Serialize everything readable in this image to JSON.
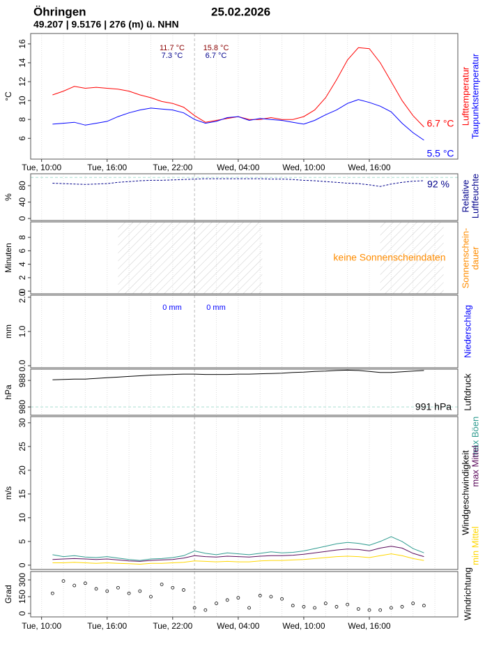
{
  "header": {
    "title": "Öhringen",
    "date": "25.02.2026",
    "subtitle": "49.207 | 9.5176 | 276 (m) ü. NHN"
  },
  "x": [
    11,
    12,
    13,
    14,
    15,
    16,
    17,
    18,
    19,
    20,
    21,
    22,
    23,
    24,
    25,
    26,
    27,
    28,
    29,
    30,
    31,
    32,
    33,
    34,
    35,
    36,
    37,
    38,
    39,
    40,
    41,
    42,
    43,
    44,
    45
  ],
  "xlim": [
    9,
    48.1
  ],
  "xticks": [
    {
      "value": 10,
      "label": "Tue, 10:00"
    },
    {
      "value": 16,
      "label": "Tue, 16:00"
    },
    {
      "value": 22,
      "label": "Tue, 22:00"
    },
    {
      "value": 28,
      "label": "Wed, 04:00"
    },
    {
      "value": 34,
      "label": "Wed, 10:00"
    },
    {
      "value": 40,
      "label": "Wed, 16:00"
    }
  ],
  "xgrid": [
    10,
    12,
    14,
    16,
    18,
    20,
    22,
    26,
    28,
    30,
    32,
    34,
    36,
    38,
    40,
    42,
    44,
    46
  ],
  "day_line": 24,
  "chart_data": [
    {
      "type": "line",
      "ylabel": "°C",
      "ylim": [
        3.8,
        17.1
      ],
      "yticks": [
        6,
        8,
        10,
        12,
        14,
        16
      ],
      "series": [
        {
          "name": "Lufttemperatur",
          "color": "#ff0000",
          "values": [
            10.6,
            11.0,
            11.5,
            11.3,
            11.4,
            11.3,
            11.2,
            11.0,
            10.6,
            10.3,
            9.9,
            9.7,
            9.3,
            8.4,
            7.7,
            7.9,
            8.1,
            8.3,
            8.0,
            8.0,
            8.2,
            8.0,
            8.0,
            8.3,
            9.0,
            10.3,
            12.2,
            14.3,
            15.6,
            15.5,
            14.0,
            12.0,
            10.0,
            8.4,
            7.2
          ]
        },
        {
          "name": "Taupunktstemperatur",
          "color": "#0000ff",
          "values": [
            7.5,
            7.6,
            7.7,
            7.4,
            7.6,
            7.8,
            8.3,
            8.7,
            9.0,
            9.2,
            9.1,
            9.0,
            8.7,
            8.0,
            7.6,
            7.8,
            8.2,
            8.3,
            7.9,
            8.1,
            8.0,
            7.9,
            7.7,
            7.5,
            7.9,
            8.5,
            9.0,
            9.7,
            10.1,
            9.8,
            9.4,
            8.8,
            7.6,
            6.6,
            5.8
          ]
        }
      ],
      "side_labels": [
        {
          "text": "Lufttemperatur",
          "color": "#ff0000"
        },
        {
          "text": "Taupunktstemperatur",
          "color": "#0000ff"
        }
      ],
      "annotations": [
        {
          "text": "11.7 °C",
          "color": "#8b0000"
        },
        {
          "text": "7.3 °C",
          "color": "#00008b"
        },
        {
          "text": "15.8 °C",
          "color": "#8b0000"
        },
        {
          "text": "6.7 °C",
          "color": "#00008b"
        },
        {
          "text": "6.7 °C",
          "color": "#ff0000"
        },
        {
          "text": "5.5 °C",
          "color": "#0000ff"
        }
      ]
    },
    {
      "type": "line",
      "ylabel": "%",
      "ylim": [
        -5,
        109
      ],
      "yticks": [
        0,
        40,
        80
      ],
      "ref_line": 100,
      "dashed": true,
      "series": [
        {
          "name": "Relative Luftfeuchte",
          "color": "#00008b",
          "values": [
            86,
            85,
            84,
            83,
            84,
            85,
            88,
            90,
            92,
            93,
            93,
            94,
            95,
            96,
            97,
            97,
            97,
            97,
            97,
            97,
            96,
            96,
            95,
            93,
            92,
            90,
            88,
            86,
            85,
            82,
            78,
            84,
            88,
            91,
            92
          ]
        }
      ],
      "side_labels": [
        {
          "text": "Relative",
          "color": "#00008b"
        },
        {
          "text": "Luftfeuchte",
          "color": "#00008b"
        }
      ],
      "annotations": [
        {
          "text": "92 %",
          "color": "#00008b"
        }
      ]
    },
    {
      "type": "bar",
      "ylabel": "Minuten",
      "ylim": [
        -0.4,
        10.3
      ],
      "yticks": [
        0,
        2,
        4,
        6,
        8
      ],
      "night": [
        [
          17,
          30.2
        ],
        [
          41,
          46.8
        ]
      ],
      "side_labels": [
        {
          "text": "Sonnenschein-",
          "color": "#ff8c00"
        },
        {
          "text": "dauer",
          "color": "#ff8c00"
        }
      ],
      "annotations": [
        {
          "text": "keine Sonnenscheindaten",
          "color": "#ff8c00"
        }
      ]
    },
    {
      "type": "bar",
      "ylabel": "mm",
      "ylim": [
        -0.06,
        2.06
      ],
      "yticks": [
        {
          "value": 0,
          "label": "0.0"
        },
        {
          "value": 1,
          "label": "1.0"
        },
        {
          "value": 2,
          "label": "2.0"
        }
      ],
      "side_labels": [
        {
          "text": "Niederschlag",
          "color": "#0000ff"
        }
      ],
      "annotations": [
        {
          "text": "0 mm",
          "color": "#0000ff"
        },
        {
          "text": "0 mm",
          "color": "#0000ff"
        }
      ]
    },
    {
      "type": "line",
      "ylabel": "hPa",
      "ylim": [
        977.5,
        991.4
      ],
      "yticks": [
        980,
        988
      ],
      "ref_line": 980,
      "series": [
        {
          "name": "Luftdruck",
          "color": "#000000",
          "values": [
            988.2,
            988.3,
            988.4,
            988.4,
            988.6,
            988.8,
            989.0,
            989.2,
            989.4,
            989.6,
            989.7,
            989.8,
            989.9,
            989.9,
            989.8,
            989.8,
            989.8,
            989.9,
            989.9,
            990.0,
            990.1,
            990.2,
            990.4,
            990.5,
            990.7,
            990.8,
            991.0,
            991.1,
            991.0,
            990.7,
            990.4,
            990.4,
            990.6,
            990.8,
            991.0
          ]
        }
      ],
      "side_labels": [
        {
          "text": "Luftdruck",
          "color": "#000000"
        }
      ],
      "annotations": [
        {
          "text": "991 hPa",
          "color": "#000000"
        }
      ]
    },
    {
      "type": "line",
      "ylabel": "m/s",
      "ylim": [
        -0.9,
        31.3
      ],
      "yticks": [
        0,
        5,
        10,
        15,
        20,
        25,
        30
      ],
      "series": [
        {
          "name": "max Böen",
          "color": "#2e9b8f",
          "values": [
            2.2,
            1.8,
            2.0,
            1.7,
            1.6,
            1.8,
            1.5,
            1.2,
            1.0,
            1.3,
            1.4,
            1.6,
            2.0,
            3.0,
            2.5,
            2.2,
            2.6,
            2.4,
            2.2,
            2.5,
            2.8,
            2.6,
            2.7,
            3.0,
            3.5,
            4.0,
            4.5,
            4.8,
            4.6,
            4.2,
            5.0,
            6.0,
            5.0,
            3.5,
            2.6
          ]
        },
        {
          "name": "max Mittel",
          "color": "#5b0a5b",
          "values": [
            1.2,
            1.3,
            1.4,
            1.3,
            1.2,
            1.3,
            1.1,
            0.9,
            0.8,
            1.0,
            1.1,
            1.2,
            1.5,
            2.0,
            1.8,
            1.7,
            1.9,
            1.8,
            1.7,
            1.9,
            2.0,
            2.0,
            2.1,
            2.3,
            2.6,
            2.9,
            3.2,
            3.4,
            3.3,
            3.0,
            3.6,
            4.0,
            3.6,
            2.5,
            1.8
          ]
        },
        {
          "name": "min Mittel",
          "color": "#ffd700",
          "values": [
            0.5,
            0.5,
            0.6,
            0.5,
            0.4,
            0.5,
            0.4,
            0.3,
            0.2,
            0.4,
            0.4,
            0.5,
            0.6,
            0.9,
            0.8,
            0.7,
            0.8,
            0.7,
            0.7,
            0.9,
            1.0,
            1.0,
            1.1,
            1.2,
            1.4,
            1.6,
            1.8,
            1.9,
            1.8,
            1.6,
            2.0,
            2.4,
            2.0,
            1.4,
            1.0
          ]
        }
      ],
      "side_labels": [
        {
          "text": "Windgeschwindigkeit",
          "color": "#000000"
        },
        {
          "text": "max Böen",
          "color": "#2e9b8f"
        },
        {
          "text": "max Mittel",
          "color": "#5b0a5b"
        },
        {
          "text": "min Mittel",
          "color": "#ffd700"
        }
      ]
    },
    {
      "type": "scatter",
      "ylabel": "Grad",
      "ylim": [
        -31,
        375
      ],
      "yticks": [
        0,
        150,
        300
      ],
      "series": [
        {
          "name": "Windrichtung",
          "color": "#000000",
          "values": [
            180,
            290,
            250,
            270,
            220,
            200,
            230,
            180,
            200,
            150,
            260,
            230,
            210,
            50,
            30,
            90,
            120,
            140,
            50,
            160,
            150,
            130,
            70,
            60,
            50,
            90,
            60,
            80,
            40,
            30,
            30,
            50,
            60,
            90,
            70
          ]
        }
      ],
      "side_labels": [
        {
          "text": "Windrichtung",
          "color": "#000000"
        }
      ]
    }
  ]
}
